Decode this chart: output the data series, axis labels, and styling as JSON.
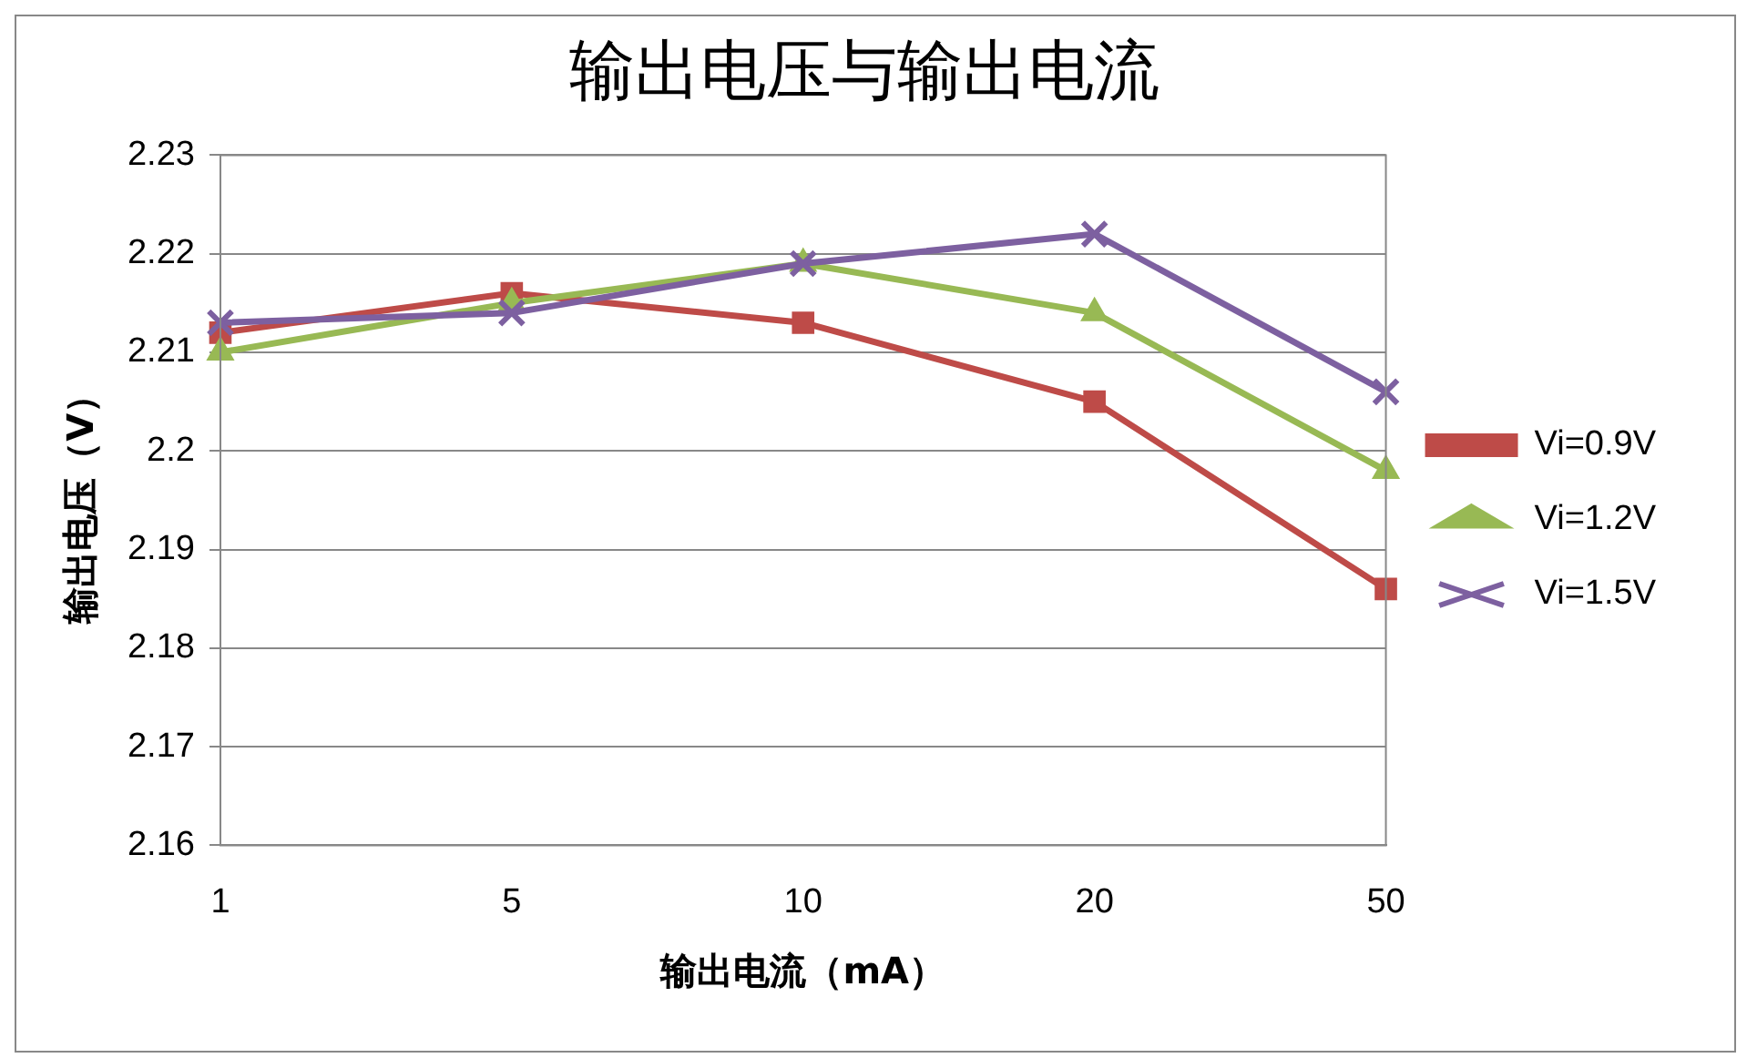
{
  "chart_data": {
    "type": "line",
    "title": "输出电压与输出电流",
    "xlabel": "输出电流（mA）",
    "ylabel": "输出电压（V）",
    "categories": [
      "1",
      "5",
      "10",
      "20",
      "50"
    ],
    "series": [
      {
        "name": "Vi=0.9V",
        "color": "#be4b48",
        "marker": "square",
        "values": [
          2.212,
          2.216,
          2.213,
          2.205,
          2.186
        ]
      },
      {
        "name": "Vi=1.2V",
        "color": "#98b954",
        "marker": "triangle",
        "values": [
          2.21,
          2.215,
          2.219,
          2.214,
          2.198
        ]
      },
      {
        "name": "Vi=1.5V",
        "color": "#7d60a0",
        "marker": "cross",
        "values": [
          2.213,
          2.214,
          2.219,
          2.222,
          2.206
        ]
      }
    ],
    "ylim": [
      2.16,
      2.23
    ],
    "yticks": [
      2.16,
      2.17,
      2.18,
      2.19,
      2.2,
      2.21,
      2.22,
      2.23
    ],
    "grid": "y",
    "legend": "right",
    "line_style": "solid"
  }
}
